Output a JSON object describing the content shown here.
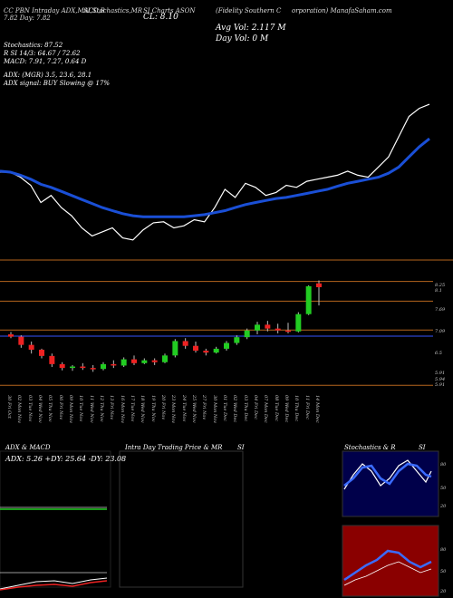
{
  "header": {
    "line1": "CC  PBN  Intraday  ADX,MACD,B",
    "line2": "SI,Stochastics,MR",
    "line3": "SI Charts ASON",
    "line4": "(Fidelity  Southern  C",
    "line5": "orporation) ManafaSaham.com",
    "sub": "7.82  Day: 7.82",
    "close": "CL: 8.10",
    "avg_vol": "Avg Vol: 2.117 M",
    "day_vol": "Day Vol: 0  M"
  },
  "stats": {
    "stoch": "Stochastics: 87.52",
    "rsi": "R           SI 14/3: 64.67 / 72.62",
    "macd": "MACD: 7.91, 7.27, 0.64  D",
    "adx": "ADX:                           (MGR) 3.5,  23.6,  28.1",
    "adx_signal": "ADX   signal:                         BUY Slowing @ 17%"
  },
  "price_axis": [
    "8.25",
    "8.1",
    "7.69",
    "7.09",
    "6.5",
    "5.91",
    "5.94",
    "5.91"
  ],
  "date_labels": [
    "30 Fri Oct",
    "02 Mon Nov",
    "03 Tue Nov",
    "04 Wed Nov",
    "05 Thu Nov",
    "06 Fri Nov",
    "09 Mon Nov",
    "10 Tue Nov",
    "11 Wed Nov",
    "12 Thu Nov",
    "13 Fri Nov",
    "16 Mon Nov",
    "17 Tue Nov",
    "18 Wed Nov",
    "19 Thu Nov",
    "20 Fri Nov",
    "23 Mon Nov",
    "24 Tue Nov",
    "25 Wed Nov",
    "27 Fri Nov",
    "30 Mon Nov",
    "01 Tue Dec",
    "02 Wed Dec",
    "03 Thu Dec",
    "04 Fri Dec",
    "07 Mon Dec",
    "08 Tue Dec",
    "09 Wed Dec",
    "10 Thu Dec",
    "11 Fri Dec",
    "14 Mon Dec"
  ],
  "panels": {
    "adx_title": "ADX  & MACD",
    "adx_values": "ADX: 5.26  +DY: 25.64  -DY: 23.08",
    "intraday_title": "Intra  Day  Trading  Price   & MR",
    "intraday_si": "SI",
    "stoch_title": "Stochastics  & R",
    "stoch_si": "SI",
    "stoch_axis": [
      "80",
      "50",
      "20"
    ],
    "rsi_axis": [
      "80",
      "50",
      "20"
    ]
  },
  "colors": {
    "up": "#22cc22",
    "down": "#ee2222",
    "ma": "#1a4fd6",
    "price_line": "#ffffff",
    "hline": "#b5651d",
    "stoch_bg": "#00004a",
    "rsi_bg": "#8a0000"
  },
  "chart_data": [
    {
      "type": "line",
      "series": [
        {
          "values": [
            7.05,
            7.05,
            7.0,
            6.92,
            6.75,
            6.82,
            6.7,
            6.62,
            6.5,
            6.42,
            6.46,
            6.5,
            6.4,
            6.38,
            6.48,
            6.55,
            6.56,
            6.5,
            6.52,
            6.58,
            6.56,
            6.7,
            6.88,
            6.8,
            6.94,
            6.9,
            6.82,
            6.85,
            6.92,
            6.9,
            6.96,
            6.98,
            7.0,
            7.02,
            7.06,
            7.02,
            7.0,
            7.1,
            7.2,
            7.4,
            7.6,
            7.68,
            7.72
          ]
        },
        {
          "values": [
            7.06,
            7.05,
            7.02,
            6.98,
            6.93,
            6.9,
            6.86,
            6.82,
            6.78,
            6.74,
            6.7,
            6.67,
            6.64,
            6.62,
            6.61,
            6.61,
            6.61,
            6.61,
            6.61,
            6.62,
            6.63,
            6.65,
            6.67,
            6.7,
            6.73,
            6.75,
            6.77,
            6.79,
            6.8,
            6.82,
            6.84,
            6.86,
            6.88,
            6.91,
            6.94,
            6.96,
            6.98,
            7.0,
            7.04,
            7.1,
            7.2,
            7.3,
            7.38
          ]
        }
      ]
    },
    {
      "type": "bar",
      "categories": [
        "30 Fri Oct",
        "02 Mon Nov",
        "03 Tue Nov",
        "04 Wed Nov",
        "05 Thu Nov",
        "06 Fri Nov",
        "09 Mon Nov",
        "10 Tue Nov",
        "11 Wed Nov",
        "12 Thu Nov",
        "13 Fri Nov",
        "16 Mon Nov",
        "17 Tue Nov",
        "18 Wed Nov",
        "19 Thu Nov",
        "20 Fri Nov",
        "23 Mon Nov",
        "24 Tue Nov",
        "25 Wed Nov",
        "27 Fri Nov",
        "30 Mon Nov",
        "01 Tue Dec",
        "02 Wed Dec",
        "03 Thu Dec",
        "04 Fri Dec",
        "07 Mon Dec",
        "08 Tue Dec",
        "09 Wed Dec",
        "10 Thu Dec",
        "11 Fri Dec",
        "14 Mon Dec"
      ],
      "candles": [
        {
          "o": 7.0,
          "h": 7.05,
          "l": 6.92,
          "c": 6.95
        },
        {
          "o": 6.95,
          "h": 6.98,
          "l": 6.72,
          "c": 6.78
        },
        {
          "o": 6.78,
          "h": 6.85,
          "l": 6.6,
          "c": 6.68
        },
        {
          "o": 6.68,
          "h": 6.7,
          "l": 6.5,
          "c": 6.55
        },
        {
          "o": 6.55,
          "h": 6.6,
          "l": 6.32,
          "c": 6.38
        },
        {
          "o": 6.38,
          "h": 6.42,
          "l": 6.25,
          "c": 6.3
        },
        {
          "o": 6.3,
          "h": 6.36,
          "l": 6.24,
          "c": 6.33
        },
        {
          "o": 6.33,
          "h": 6.4,
          "l": 6.26,
          "c": 6.3
        },
        {
          "o": 6.3,
          "h": 6.36,
          "l": 6.22,
          "c": 6.28
        },
        {
          "o": 6.28,
          "h": 6.42,
          "l": 6.25,
          "c": 6.38
        },
        {
          "o": 6.38,
          "h": 6.46,
          "l": 6.3,
          "c": 6.35
        },
        {
          "o": 6.35,
          "h": 6.52,
          "l": 6.32,
          "c": 6.48
        },
        {
          "o": 6.48,
          "h": 6.56,
          "l": 6.36,
          "c": 6.4
        },
        {
          "o": 6.4,
          "h": 6.5,
          "l": 6.38,
          "c": 6.46
        },
        {
          "o": 6.46,
          "h": 6.5,
          "l": 6.36,
          "c": 6.42
        },
        {
          "o": 6.42,
          "h": 6.6,
          "l": 6.4,
          "c": 6.56
        },
        {
          "o": 6.56,
          "h": 6.9,
          "l": 6.52,
          "c": 6.86
        },
        {
          "o": 6.86,
          "h": 6.92,
          "l": 6.7,
          "c": 6.76
        },
        {
          "o": 6.76,
          "h": 6.85,
          "l": 6.62,
          "c": 6.66
        },
        {
          "o": 6.66,
          "h": 6.7,
          "l": 6.56,
          "c": 6.62
        },
        {
          "o": 6.62,
          "h": 6.74,
          "l": 6.6,
          "c": 6.7
        },
        {
          "o": 6.7,
          "h": 6.86,
          "l": 6.66,
          "c": 6.82
        },
        {
          "o": 6.82,
          "h": 6.98,
          "l": 6.78,
          "c": 6.94
        },
        {
          "o": 6.94,
          "h": 7.12,
          "l": 6.9,
          "c": 7.08
        },
        {
          "o": 7.08,
          "h": 7.26,
          "l": 7.0,
          "c": 7.2
        },
        {
          "o": 7.2,
          "h": 7.28,
          "l": 7.06,
          "c": 7.12
        },
        {
          "o": 7.12,
          "h": 7.22,
          "l": 7.02,
          "c": 7.08
        },
        {
          "o": 7.08,
          "h": 7.24,
          "l": 7.02,
          "c": 7.06
        },
        {
          "o": 7.06,
          "h": 7.46,
          "l": 7.04,
          "c": 7.42
        },
        {
          "o": 7.42,
          "h": 8.02,
          "l": 7.4,
          "c": 8.0
        },
        {
          "o": 8.06,
          "h": 8.12,
          "l": 7.6,
          "c": 7.98
        }
      ]
    }
  ]
}
